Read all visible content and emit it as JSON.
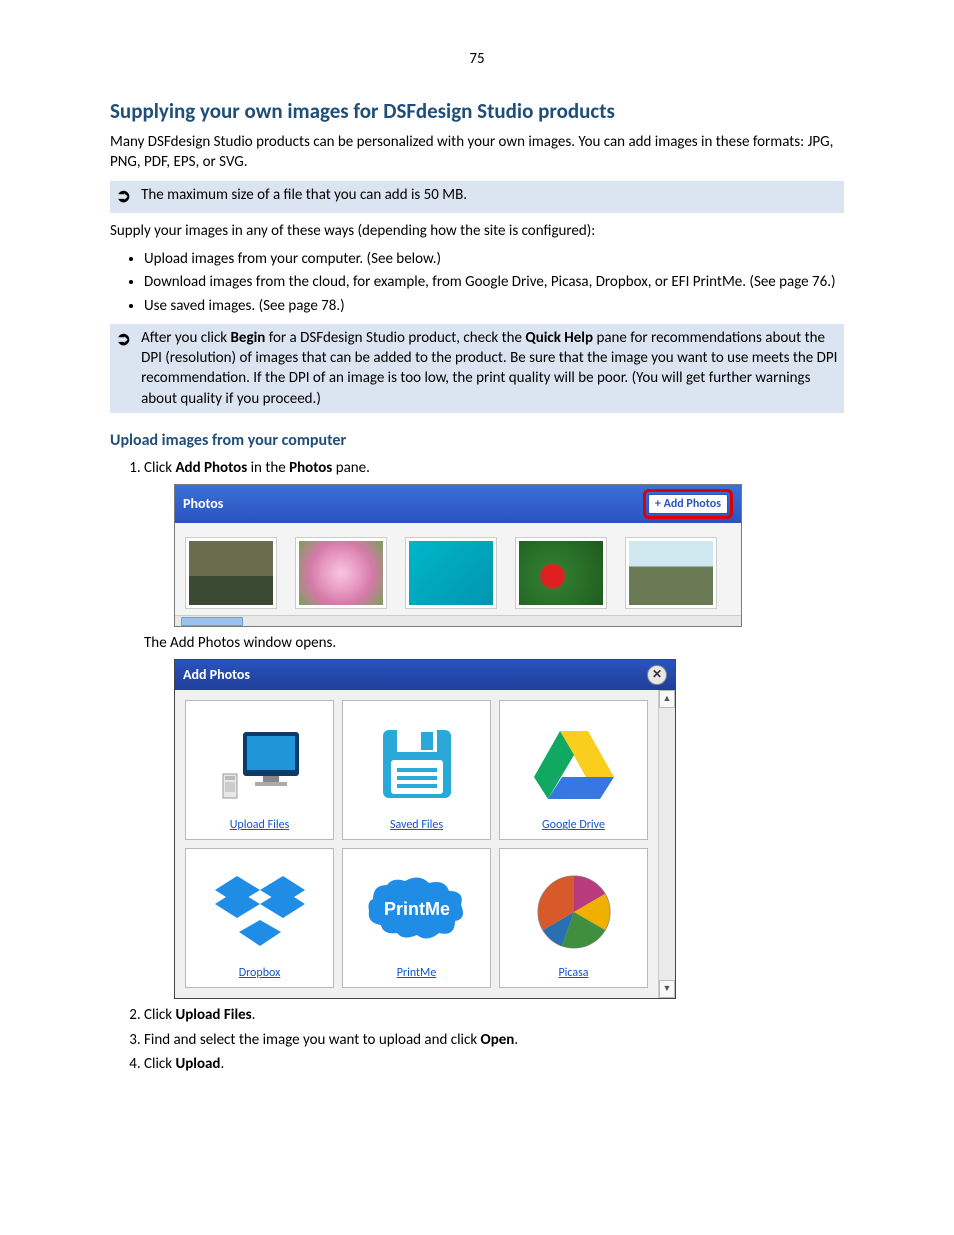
{
  "page_number": "75",
  "h1": "Supplying your own images for DSFdesign Studio products",
  "intro": "Many DSFdesign Studio products can be personalized with your own images. You can add images in these formats: JPG, PNG, PDF, EPS, or SVG.",
  "note1": "The maximum size of a file that you can add is 50 MB.",
  "ways_intro": "Supply your images in any of these ways (depending how the site is configured):",
  "bullets": [
    "Upload images from your computer. (See below.)",
    "Download images from the cloud, for example, from Google Drive, Picasa, Dropbox, or EFI PrintMe. (See page 76.)",
    "Use saved images. (See page 78.)"
  ],
  "note2_pre": "After you click ",
  "note2_b1": "Begin",
  "note2_mid1": " for a DSFdesign Studio product, check the ",
  "note2_b2": "Quick Help",
  "note2_post": " pane for recommendations about the DPI (resolution) of images that can be added to the product. Be sure that the image you want to use meets the DPI recommendation. If the DPI of an image is too low, the print quality will be poor. (You will get further warnings about quality if you proceed.)",
  "h2": "Upload images from your computer",
  "step1_pre": "Click ",
  "step1_b1": "Add Photos",
  "step1_mid": " in the ",
  "step1_b2": "Photos",
  "step1_post": " pane.",
  "photos_pane": {
    "title": "Photos",
    "button": "+ Add Photos",
    "thumbs": [
      {
        "bg": "linear-gradient(#6b6b4d 0%, #6b6b4d 55%, #3a4a32 55%, #3a4a32 100%)"
      },
      {
        "bg": "radial-gradient(circle at 50% 50%, #f7c6e0 0%, #e89ac2 35%, #d47aa8 60%, #7aa05a 100%)"
      },
      {
        "bg": "linear-gradient(135deg, #00b6c9, #0096b0)"
      },
      {
        "bg": "radial-gradient(circle at 40% 55%, #e02020 0%, #e02020 18%, #2f7a2f 22%, #1e5a1e 100%)"
      },
      {
        "bg": "linear-gradient(#cfe8f0 0%, #cfe8f0 40%, #6a7a55 40%, #6a7a55 100%)"
      }
    ]
  },
  "after_pane": "The Add Photos window opens.",
  "addphotos": {
    "title": "Add Photos",
    "options": [
      {
        "label": "Upload Files",
        "icon": "computer"
      },
      {
        "label": "Saved Files",
        "icon": "floppy"
      },
      {
        "label": "Google Drive",
        "icon": "gdrive"
      },
      {
        "label": "Dropbox",
        "icon": "dropbox"
      },
      {
        "label": "PrintMe",
        "icon": "printme"
      },
      {
        "label": "Picasa",
        "icon": "picasa"
      }
    ]
  },
  "step2_pre": "Click ",
  "step2_b": "Upload Files",
  "step2_post": ".",
  "step3_pre": "Find and select the image you want to upload and click ",
  "step3_b": "Open",
  "step3_post": ".",
  "step4_pre": "Click ",
  "step4_b": "Upload",
  "step4_post": ".",
  "colors": {
    "heading": "#1f4e79",
    "note_bg": "#dbe5f1",
    "link": "#1155cc",
    "pane_header_top": "#3a6fd8",
    "pane_header_bot": "#2a54c0",
    "highlight_border": "#d00"
  }
}
